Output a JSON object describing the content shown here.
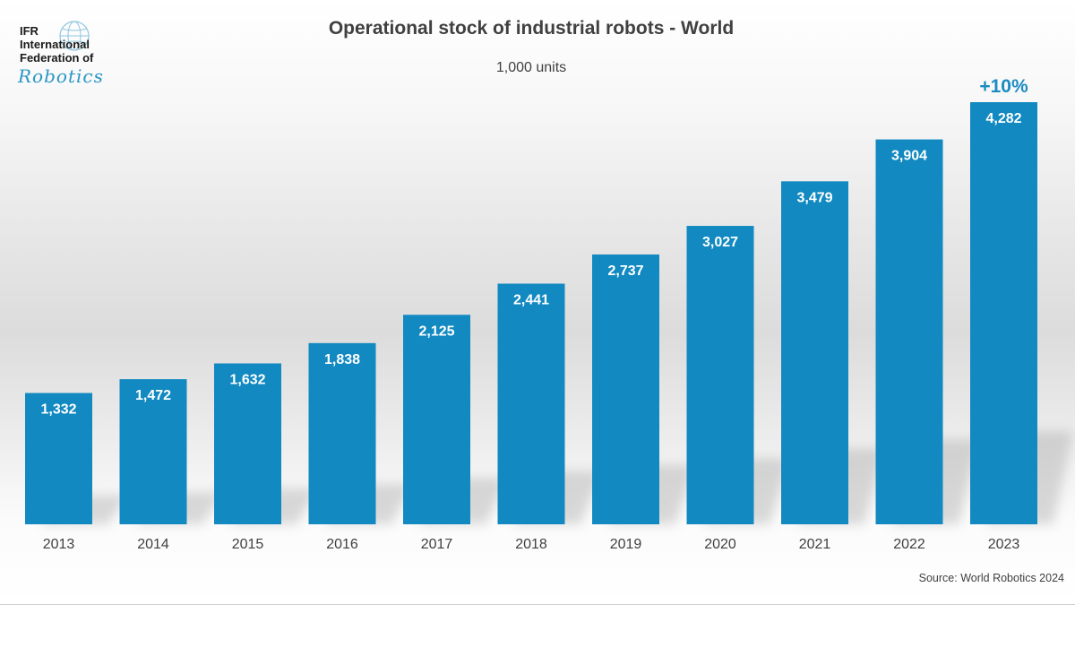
{
  "logo": {
    "line1": "IFR",
    "line2": "International",
    "line3": "Federation of",
    "line4": "Robotics"
  },
  "header": {
    "title": "Operational stock of industrial robots - World",
    "subtitle": "1,000 units"
  },
  "source": "Source: World Robotics 2024",
  "colors": {
    "bar": "#1289c0",
    "growth": "#1a8bc2"
  },
  "chart_data": {
    "type": "bar",
    "title": "Operational stock of industrial robots - World",
    "subtitle": "1,000 units",
    "categories": [
      "2013",
      "2014",
      "2015",
      "2016",
      "2017",
      "2018",
      "2019",
      "2020",
      "2021",
      "2022",
      "2023"
    ],
    "values": [
      1332,
      1472,
      1632,
      1838,
      2125,
      2441,
      2737,
      3027,
      3479,
      3904,
      4282
    ],
    "value_labels": [
      "1,332",
      "1,472",
      "1,632",
      "1,838",
      "2,125",
      "2,441",
      "2,737",
      "3,027",
      "3,479",
      "3,904",
      "4,282"
    ],
    "annotation": {
      "category": "2023",
      "text": "+10%"
    },
    "xlabel": "",
    "ylabel": "",
    "ylim": [
      0,
      4282
    ],
    "grid": false,
    "legend": "none"
  }
}
